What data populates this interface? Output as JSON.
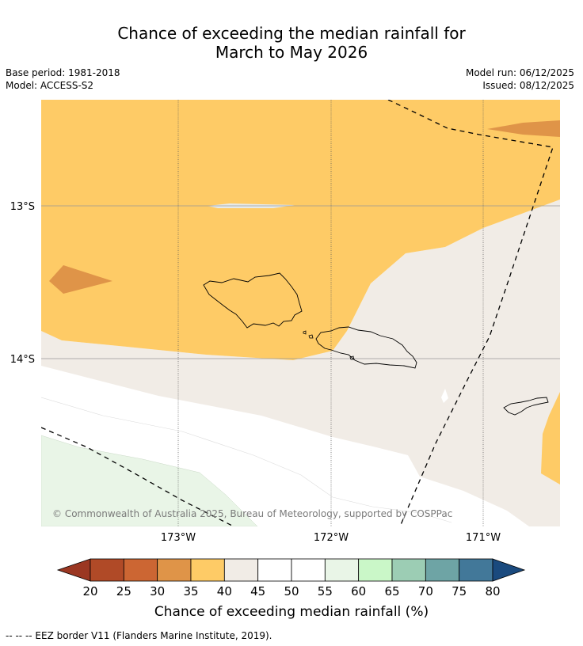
{
  "title": {
    "line1": "Chance of exceeding the median rainfall for",
    "line2": "March to May 2026"
  },
  "meta": {
    "base_period": "Base period: 1981-2018",
    "model": "Model: ACCESS-S2",
    "model_run": "Model run: 06/12/2025",
    "issued": "Issued: 08/12/2025"
  },
  "map": {
    "lat_labels": [
      "13°S",
      "14°S"
    ],
    "lon_labels": [
      "173°W",
      "172°W",
      "171°W"
    ],
    "copyright": "© Commonwealth of Australia 2025, Bureau of Meteorology, supported by COSPPac",
    "colors": {
      "c35_40": "#fecb66",
      "c30_35": "#df9448",
      "c40_45": "#f1ece6",
      "c45_55": "#ffffff",
      "c55_60": "#e9f5e7"
    }
  },
  "colorbar": {
    "ticks": [
      "20",
      "25",
      "30",
      "35",
      "40",
      "45",
      "50",
      "55",
      "60",
      "65",
      "70",
      "75",
      "80"
    ],
    "under_color": "#9b3722",
    "over_color": "#1a4a7e",
    "colors": [
      "#b04a27",
      "#cc6633",
      "#df9448",
      "#fecb66",
      "#f1ece6",
      "#ffffff",
      "#ffffff",
      "#e9f5e7",
      "#caf7c8",
      "#9ccdb4",
      "#6ea4a5",
      "#427899"
    ],
    "label": "Chance of exceeding median rainfall (%)"
  },
  "footer": {
    "eez_legend": "--  --  -- EEZ border V11 (Flanders Marine Institute, 2019)."
  }
}
